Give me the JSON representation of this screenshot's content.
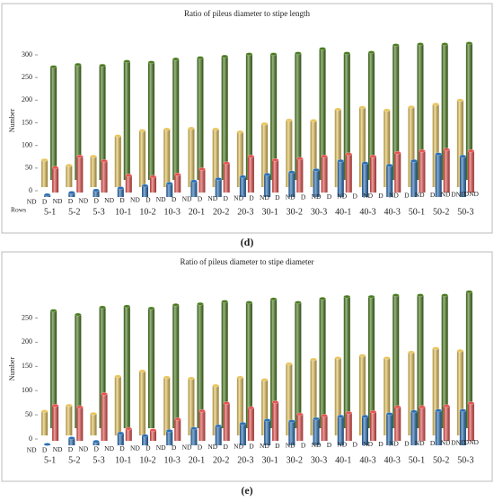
{
  "chart_data": [
    {
      "type": "bar",
      "title": "Ratio of pileus diameter to stipe length",
      "y_label": "Number",
      "panel_label": "(d)",
      "rows_label": "Rows",
      "categories": [
        "5-1",
        "5-2",
        "5-3",
        "10-1",
        "10-2",
        "10-3",
        "20-1",
        "20-2",
        "20-3",
        "30-1",
        "30-2",
        "30-3",
        "40-1",
        "40-3",
        "40-3",
        "50-1",
        "50-2",
        "50-3"
      ],
      "depth_labels": [
        "ND",
        "D",
        "ND",
        "D",
        "ND",
        "D",
        "ND",
        "D",
        "ND",
        "D",
        "ND",
        "D",
        "ND",
        "D",
        "ND",
        "D",
        "ND",
        "D",
        "ND",
        "D",
        "ND",
        "D",
        "ND",
        "D",
        "ND",
        "D",
        "ND",
        "D",
        "ND",
        "D",
        "ND",
        "D",
        "ND",
        "DND",
        "DND"
      ],
      "ylim": [
        0,
        310
      ],
      "yticks": [
        0,
        50,
        100,
        150,
        200,
        250,
        300
      ],
      "series": [
        {
          "color": "#4b7d1f",
          "values": [
            250,
            255,
            253,
            262,
            260,
            267,
            270,
            273,
            278,
            278,
            280,
            290,
            280,
            282,
            298,
            300,
            300,
            302
          ]
        },
        {
          "color": "#e9c65c",
          "values": [
            60,
            48,
            68,
            113,
            125,
            128,
            130,
            128,
            122,
            140,
            148,
            147,
            172,
            176,
            170,
            177,
            183,
            192
          ]
        },
        {
          "color": "#e8534f",
          "values": [
            55,
            80,
            70,
            38,
            35,
            40,
            52,
            65,
            80,
            72,
            75,
            80,
            85,
            80,
            88,
            92,
            95,
            92
          ]
        },
        {
          "color": "#2a6fb5",
          "values": [
            5,
            10,
            15,
            20,
            25,
            30,
            35,
            40,
            45,
            50,
            55,
            60,
            80,
            75,
            70,
            80,
            95,
            90
          ]
        }
      ]
    },
    {
      "type": "bar",
      "title": "Ratio of pileus diameter to stipe diameter",
      "y_label": "Number",
      "panel_label": "(e)",
      "categories": [
        "5-1",
        "5-2",
        "5-3",
        "10-1",
        "10-2",
        "10-3",
        "20-1",
        "20-2",
        "20-3",
        "30-1",
        "30-2",
        "30-3",
        "40-1",
        "40-3",
        "40-3",
        "50-1",
        "50-2",
        "50-3"
      ],
      "depth_labels": [
        "ND",
        "D",
        "ND",
        "D",
        "ND",
        "D",
        "ND",
        "D",
        "ND",
        "D",
        "ND",
        "D",
        "ND",
        "D",
        "ND",
        "D",
        "ND",
        "D",
        "ND",
        "D",
        "ND",
        "D",
        "ND",
        "D",
        "ND",
        "D",
        "ND",
        "D",
        "ND",
        "D",
        "ND",
        "D",
        "ND",
        "DND",
        "DND"
      ],
      "ylim": [
        0,
        290
      ],
      "yticks": [
        0,
        50,
        100,
        150,
        200,
        250
      ],
      "series": [
        {
          "color": "#4b7d1f",
          "values": [
            243,
            235,
            250,
            252,
            248,
            255,
            257,
            262,
            260,
            267,
            260,
            268,
            272,
            272,
            275,
            275,
            275,
            282
          ]
        },
        {
          "color": "#e9c65c",
          "values": [
            50,
            62,
            45,
            122,
            133,
            120,
            118,
            103,
            120,
            115,
            148,
            157,
            160,
            165,
            160,
            172,
            180,
            175
          ]
        },
        {
          "color": "#e8534f",
          "values": [
            73,
            70,
            97,
            25,
            22,
            45,
            62,
            78,
            68,
            80,
            55,
            52,
            58,
            60,
            70,
            70,
            72,
            78
          ]
        },
        {
          "color": "#2a6fb5",
          "values": [
            2,
            15,
            8,
            25,
            20,
            30,
            35,
            40,
            45,
            52,
            50,
            55,
            60,
            60,
            65,
            70,
            72,
            72
          ]
        }
      ]
    }
  ]
}
